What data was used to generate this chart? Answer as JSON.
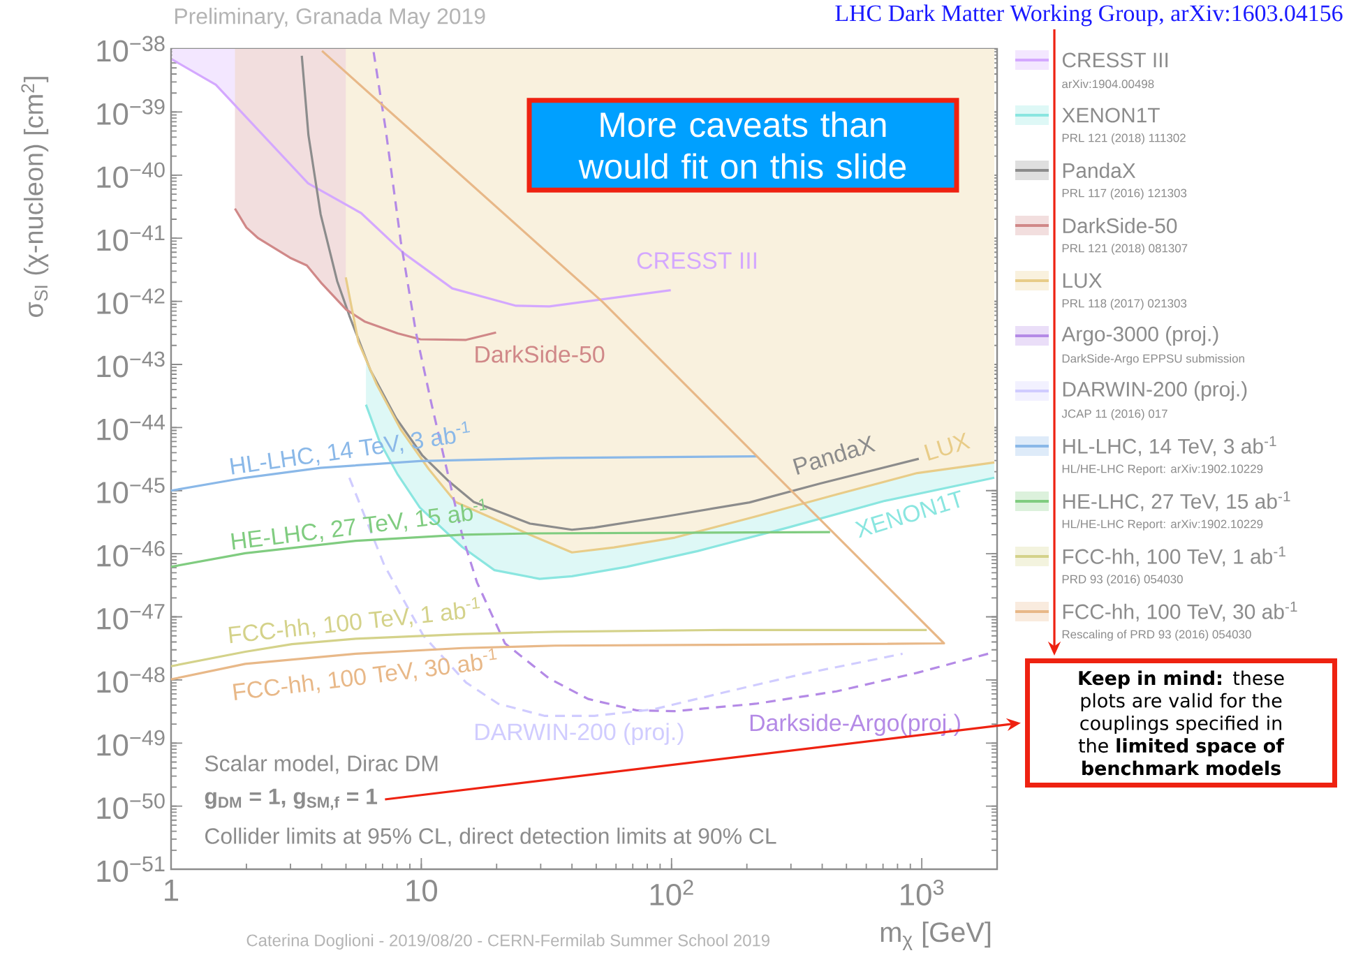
{
  "chart_data": {
    "type": "line",
    "log": "xy",
    "xlim": [
      1,
      2000
    ],
    "ylim": [
      1e-51,
      1e-38
    ],
    "xticks": [
      1,
      10,
      {
        "value": 100,
        "label": "10$^{2}$"
      },
      {
        "value": 1000,
        "label": "10$^{3}$"
      }
    ],
    "yticks": [
      {
        "value": 1e-51,
        "label": "10$^{−51}$"
      },
      {
        "value": 1e-50,
        "label": "10$^{−50}$"
      },
      {
        "value": 1e-49,
        "label": "10$^{−49}$"
      },
      {
        "value": 1e-48,
        "label": "10$^{−48}$"
      },
      {
        "value": 1e-47,
        "label": "10$^{−47}$"
      },
      {
        "value": 1e-46,
        "label": "10$^{−46}$"
      },
      {
        "value": 1e-45,
        "label": "10$^{−45}$"
      },
      {
        "value": 1e-44,
        "label": "10$^{−44}$"
      },
      {
        "value": 1e-43,
        "label": "10$^{−43}$"
      },
      {
        "value": 1e-42,
        "label": "10$^{−42}$"
      },
      {
        "value": 1e-41,
        "label": "10$^{−41}$"
      },
      {
        "value": 1e-40,
        "label": "10$^{−40}$"
      },
      {
        "value": 1e-39,
        "label": "10$^{−39}$"
      },
      {
        "value": 1e-38,
        "label": "10$^{−38}$"
      }
    ],
    "xlabel": "m$_{χ}$ [GeV]",
    "ylabel": "σ$_{SI}$ (χ-nucleon) [cm$^{2}$]",
    "legend": "right",
    "series": [
      {
        "name": "CRESST III",
        "color": "#d4a8ff",
        "x": [
          1.01,
          1.51,
          3.53,
          5.75,
          8.51,
          13.3,
          23.9,
          32.5,
          99.3
        ],
        "values": [
          6.8e-39,
          2.7e-39,
          7.4e-41,
          2.5e-41,
          5.8e-42,
          1.6e-42,
          8.5e-43,
          8.3e-43,
          1.5e-42
        ],
        "lower": [
          6.8e-39,
          2.7e-39,
          7.4e-41,
          2.5e-41,
          5.8e-42,
          1.6e-42,
          8.5e-43,
          8.3e-43,
          1.5e-42
        ],
        "upper": [
          1e-38,
          1e-38,
          1e-38,
          1e-38,
          1e-38,
          1e-38,
          1e-38,
          1e-38,
          1e-38
        ]
      },
      {
        "name": "XENON1T",
        "color": "#8ae6e0",
        "x": [
          6.01,
          6.81,
          8.05,
          9.86,
          14.6,
          19.6,
          29.7,
          40.0,
          66.2,
          127,
          292,
          713,
          1950
        ],
        "values": [
          2.3e-44,
          6e-45,
          1.8e-45,
          5.4e-46,
          1.27e-46,
          5.5e-47,
          4e-47,
          4.4e-47,
          6.2e-47,
          1.1e-46,
          2.6e-46,
          6.9e-46,
          1.6e-45
        ],
        "lower": [
          2.3e-44,
          6e-45,
          1.8e-45,
          5.4e-46,
          1.27e-46,
          5.5e-47,
          4e-47,
          4.4e-47,
          6.2e-47,
          1.1e-46,
          2.6e-46,
          6.9e-46,
          1.6e-45
        ],
        "upper": [
          1e-38,
          1e-38,
          1e-38,
          1e-38,
          1e-38,
          1e-38,
          1e-38,
          1e-38,
          1e-38,
          1e-38,
          1e-38,
          1e-38,
          1e-38
        ]
      },
      {
        "name": "PandaX",
        "color": "#8c8c8c",
        "x": [
          3.33,
          3.54,
          3.96,
          4.61,
          5.16,
          6.26,
          7.94,
          10.1,
          12.9,
          16.2,
          27.2,
          40.0,
          49.2,
          94.6,
          205,
          393,
          973
        ],
        "values": [
          7.8e-39,
          4.3e-40,
          2.4e-41,
          2.1e-42,
          5.9e-43,
          8.1e-44,
          1.4e-44,
          3.6e-45,
          1.4e-45,
          6.6e-46,
          3e-46,
          2.4e-46,
          2.6e-46,
          3.9e-46,
          6.5e-46,
          1.3e-45,
          3.2e-45
        ]
      },
      {
        "name": "DarkSide-50",
        "color": "#d08888",
        "x": [
          1.8,
          2.0,
          2.23,
          2.99,
          3.49,
          4.01,
          5.01,
          5.93,
          8.05,
          9.92,
          15.1,
          19.9
        ],
        "values": [
          2.95e-41,
          1.48e-41,
          1e-41,
          4.9e-42,
          3.7e-42,
          1.9e-42,
          7.4e-43,
          4.8e-43,
          3.1e-43,
          2.5e-43,
          2.45e-43,
          3.2e-43
        ],
        "lower": [
          2.95e-41,
          1.48e-41,
          1e-41,
          4.9e-42,
          3.7e-42,
          1.9e-42,
          7.4e-43,
          4.8e-43,
          3.1e-43,
          2.5e-43,
          2.45e-43,
          3.2e-43
        ],
        "upper": [
          1e-38,
          1e-38,
          1e-38,
          1e-38,
          1e-38,
          1e-38,
          1e-38,
          1e-38,
          1e-38,
          1e-38,
          1e-38,
          1e-38
        ]
      },
      {
        "name": "LUX",
        "color": "#e8cc88",
        "x": [
          4.99,
          5.6,
          6.62,
          8.28,
          10.7,
          13.7,
          27.2,
          40.0,
          58.8,
          103,
          217,
          456,
          959,
          1950
        ],
        "values": [
          2.4e-42,
          2.3e-43,
          4.9e-44,
          9.3e-45,
          2.2e-45,
          6.6e-46,
          2e-46,
          1.05e-46,
          1.26e-46,
          1.8e-46,
          3.9e-46,
          8.7e-46,
          1.9e-45,
          2.8e-45
        ],
        "lower": [
          2.4e-42,
          2.3e-43,
          4.9e-44,
          9.3e-45,
          2.2e-45,
          6.6e-46,
          2e-46,
          1.05e-46,
          1.26e-46,
          1.8e-46,
          3.9e-46,
          8.7e-46,
          1.9e-45,
          2.8e-45
        ],
        "upper": [
          1e-38,
          1e-38,
          1e-38,
          1e-38,
          1e-38,
          1e-38,
          1e-38,
          1e-38,
          1e-38,
          1e-38,
          1e-38,
          1e-38,
          1e-38,
          1e-38
        ]
      },
      {
        "name": "Argo-3000 (proj.)",
        "color": "#b48ae6",
        "line_style": "dashed",
        "x": [
          6.45,
          7.2,
          8.28,
          9.52,
          11.0,
          13.3,
          14.6,
          16.7,
          21.6,
          32.5,
          46.4,
          72.4,
          103,
          217,
          456,
          959,
          1841
        ],
        "values": [
          8.9e-39,
          5.4e-40,
          8.9e-42,
          3.2e-43,
          2.3e-44,
          9.2e-46,
          1.9e-46,
          3.5e-47,
          3.8e-48,
          1.05e-48,
          5e-49,
          3.3e-49,
          3.2e-49,
          4.2e-49,
          6.6e-49,
          1.3e-48,
          2.6e-48
        ]
      },
      {
        "name": "DARWIN-200 (proj.)",
        "color": "#d0ccff",
        "line_style": "dashed",
        "x": [
          5.16,
          7.11,
          10.2,
          15.1,
          20.3,
          31.0,
          49.2,
          84.0,
          161,
          339,
          838
        ],
        "values": [
          1.6e-45,
          6.6e-47,
          5e-48,
          9.1e-49,
          4.2e-49,
          2.7e-49,
          2.7e-49,
          3.4e-49,
          6.3e-49,
          1.26e-48,
          2.6e-48
        ]
      },
      {
        "name": "HL-LHC, 14 TeV, 3 ab$^{-1}$",
        "color": "#8ab8e8",
        "x": [
          1,
          1.98,
          3.95,
          9.86,
          35.3,
          220
        ],
        "values": [
          1e-45,
          1.6e-45,
          2.3e-45,
          2.95e-45,
          3.3e-45,
          3.5e-45
        ]
      },
      {
        "name": "HE-LHC, 27 TeV, 15 ab$^{-1}$",
        "color": "#80cc80",
        "x": [
          1,
          1.98,
          5.47,
          14.6,
          27.2,
          430
        ],
        "values": [
          6.2e-47,
          1.02e-46,
          1.6e-46,
          2e-46,
          2.1e-46,
          2.2e-46
        ]
      },
      {
        "name": "FCC-hh, 100 TeV, 1 ab$^{-1}$",
        "color": "#d4d28a",
        "x": [
          1,
          1.98,
          3.04,
          5.47,
          14.6,
          34.2,
          161,
          1047
        ],
        "values": [
          1.65e-48,
          2.8e-48,
          3.7e-48,
          4.5e-48,
          5.3e-48,
          5.8e-48,
          6.2e-48,
          6.2e-48
        ]
      },
      {
        "name": "FCC-hh, 100 TeV, 30 ab$^{-1}$",
        "color": "#e8b888",
        "x": [
          1,
          1.98,
          5.47,
          14.6,
          34.2,
          161,
          1227,
          53.0,
          4.01
        ],
        "values": [
          1.02e-48,
          1.8e-48,
          2.6e-48,
          3.2e-48,
          3.5e-48,
          3.6e-48,
          3.8e-48,
          9.8e-43,
          9.3e-39
        ]
      }
    ],
    "annotations": [
      "arXiv:1904.00498",
      "PRL 121 (2018) 111302",
      "PRL 117 (2016) 121303",
      "PRL 121 (2018) 081307",
      "PRL 118 (2017) 021303",
      "DarkSide-Argo EPPSU submission",
      "JCAP 11 (2016) 017",
      "HL/HE-LHC Report: arXiv:1902.10229",
      "HL/HE-LHC Report: arXiv:1902.10229",
      "PRD 93 (2016) 054030",
      "Rescaling of PRD 93 (2016) 054030",
      "CRESST III",
      "XENON1T",
      "PandaX",
      "DarkSide-50",
      "LUX",
      "Darkside-Argo(proj.)",
      "DARWIN-200 (proj.)",
      "HL-LHC, 14 TeV, 3 ab$^{-1}$",
      "HE-LHC, 27 TeV, 15 ab$^{-1}$",
      "FCC-hh, 100 TeV, 1 ab$^{-1}$",
      "FCC-hh, 100 TeV, 30 ab$^{-1}$",
      "Preliminary, Granada May 2019",
      "LHC Dark Matter Working Group, arXiv:1603.04156",
      "More caveats than would fit on this slide",
      "Scalar model, Dirac DM",
      "g$_{DM}$ = 1, g$_{SM,f}$ = 1",
      "Collider limits at 95% CL, direct detection limits at 90% CL",
      "**Keep in mind:** these plots are valid for the couplings specified in the **limited space of benchmark models**",
      "Caterina Doglioni - 2019/08/20 - CERN-Fermilab Summer School 2019"
    ]
  }
}
